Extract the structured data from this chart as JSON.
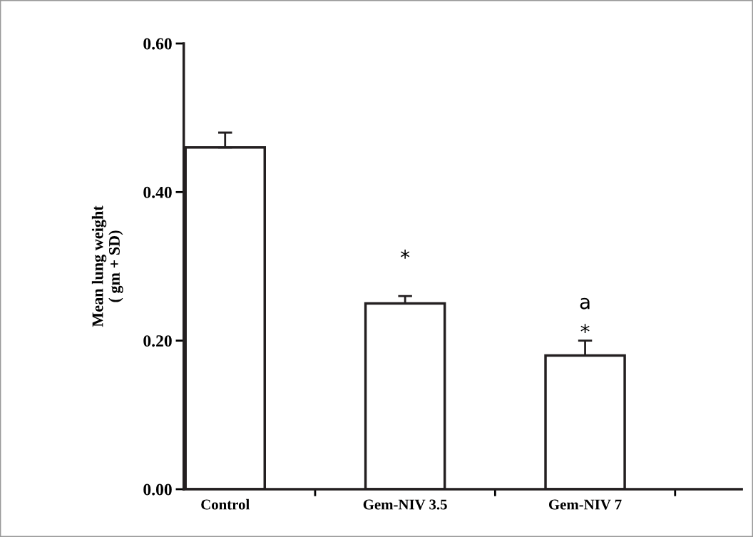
{
  "chart_data": {
    "type": "bar",
    "ylabel": "Mean lung weight\n( gm + SD)",
    "categories": [
      "Control",
      "Gem-NIV 3.5",
      "Gem-NIV 7"
    ],
    "values": [
      0.46,
      0.25,
      0.18
    ],
    "errors": [
      0.02,
      0.01,
      0.02
    ],
    "color": "#ffffff",
    "ylim": [
      0,
      0.6
    ],
    "yticks": [
      {
        "value": 0,
        "label": "0.00"
      },
      {
        "value": 0.2,
        "label": "0.20"
      },
      {
        "value": 0.4,
        "label": "0.40"
      },
      {
        "value": 0.6,
        "label": "0.60"
      }
    ],
    "grid": false,
    "legend": false,
    "annotations": [
      "*",
      "a",
      "*"
    ]
  }
}
